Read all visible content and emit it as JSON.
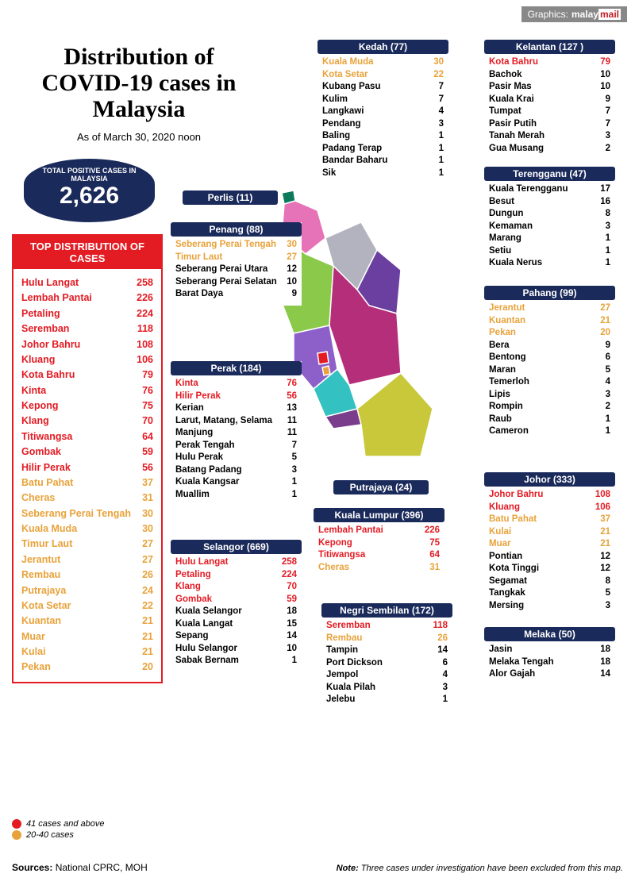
{
  "header": {
    "credit": "Graphics:",
    "logo_plain": "malay",
    "logo_red": "mail"
  },
  "title": "Distribution of COVID-19 cases in Malaysia",
  "subtitle": "As of March 30, 2020 noon",
  "total": {
    "label": "TOTAL POSITIVE CASES IN MALAYSIA",
    "value": "2,626"
  },
  "top_distribution": {
    "header": "TOP DISTRIBUTION OF CASES",
    "rows": [
      {
        "name": "Hulu Langat",
        "v": "258",
        "c": "red"
      },
      {
        "name": "Lembah Pantai",
        "v": "226",
        "c": "red"
      },
      {
        "name": "Petaling",
        "v": "224",
        "c": "red"
      },
      {
        "name": "Seremban",
        "v": "118",
        "c": "red"
      },
      {
        "name": "Johor Bahru",
        "v": "108",
        "c": "red"
      },
      {
        "name": "Kluang",
        "v": "106",
        "c": "red"
      },
      {
        "name": "Kota Bahru",
        "v": "79",
        "c": "red"
      },
      {
        "name": "Kinta",
        "v": "76",
        "c": "red"
      },
      {
        "name": "Kepong",
        "v": "75",
        "c": "red"
      },
      {
        "name": "Klang",
        "v": "70",
        "c": "red"
      },
      {
        "name": "Titiwangsa",
        "v": "64",
        "c": "red"
      },
      {
        "name": "Gombak",
        "v": "59",
        "c": "red"
      },
      {
        "name": "Hilir Perak",
        "v": "56",
        "c": "red"
      },
      {
        "name": "Batu Pahat",
        "v": "37",
        "c": "orange"
      },
      {
        "name": "Cheras",
        "v": "31",
        "c": "orange"
      },
      {
        "name": "Seberang Perai Tengah",
        "v": "30",
        "c": "orange"
      },
      {
        "name": "Kuala Muda",
        "v": "30",
        "c": "orange"
      },
      {
        "name": "Timur Laut",
        "v": "27",
        "c": "orange"
      },
      {
        "name": "Jerantut",
        "v": "27",
        "c": "orange"
      },
      {
        "name": "Rembau",
        "v": "26",
        "c": "orange"
      },
      {
        "name": "Putrajaya",
        "v": "24",
        "c": "orange"
      },
      {
        "name": "Kota Setar",
        "v": "22",
        "c": "orange"
      },
      {
        "name": "Kuantan",
        "v": "21",
        "c": "orange"
      },
      {
        "name": "Muar",
        "v": "21",
        "c": "orange"
      },
      {
        "name": "Kulai",
        "v": "21",
        "c": "orange"
      },
      {
        "name": "Pekan",
        "v": "20",
        "c": "orange"
      }
    ]
  },
  "legend": {
    "high": {
      "color": "#e31b23",
      "text": "41 cases and above"
    },
    "mid": {
      "color": "#e8a23a",
      "text": "20-40 cases"
    }
  },
  "sources": {
    "label": "Sources:",
    "text": "National CPRC, MOH"
  },
  "note": {
    "label": "Note:",
    "text": "Three cases under investigation have been excluded from this map."
  },
  "states": {
    "perlis": {
      "hdr": "Perlis (11)",
      "rows": []
    },
    "putrajaya": {
      "hdr": "Putrajaya (24)",
      "rows": []
    },
    "kedah": {
      "hdr": "Kedah (77)",
      "rows": [
        {
          "name": "Kuala Muda",
          "v": "30",
          "c": "orange"
        },
        {
          "name": "Kota Setar",
          "v": "22",
          "c": "orange"
        },
        {
          "name": "Kubang Pasu",
          "v": "7",
          "c": "black"
        },
        {
          "name": "Kulim",
          "v": "7",
          "c": "black"
        },
        {
          "name": "Langkawi",
          "v": "4",
          "c": "black"
        },
        {
          "name": "Pendang",
          "v": "3",
          "c": "black"
        },
        {
          "name": "Baling",
          "v": "1",
          "c": "black"
        },
        {
          "name": "Padang Terap",
          "v": "1",
          "c": "black"
        },
        {
          "name": "Bandar Baharu",
          "v": "1",
          "c": "black"
        },
        {
          "name": "Sik",
          "v": "1",
          "c": "black"
        }
      ]
    },
    "kelantan": {
      "hdr": "Kelantan (127 )",
      "rows": [
        {
          "name": "Kota Bahru",
          "v": "79",
          "c": "red"
        },
        {
          "name": "Bachok",
          "v": "10",
          "c": "black"
        },
        {
          "name": "Pasir Mas",
          "v": "10",
          "c": "black"
        },
        {
          "name": "Kuala Krai",
          "v": "9",
          "c": "black"
        },
        {
          "name": "Tumpat",
          "v": "7",
          "c": "black"
        },
        {
          "name": "Pasir Putih",
          "v": "7",
          "c": "black"
        },
        {
          "name": "Tanah Merah",
          "v": "3",
          "c": "black"
        },
        {
          "name": "Gua Musang",
          "v": "2",
          "c": "black"
        }
      ]
    },
    "terengganu": {
      "hdr": "Terengganu (47)",
      "rows": [
        {
          "name": "Kuala Terengganu",
          "v": "17",
          "c": "black"
        },
        {
          "name": "Besut",
          "v": "16",
          "c": "black"
        },
        {
          "name": "Dungun",
          "v": "8",
          "c": "black"
        },
        {
          "name": "Kemaman",
          "v": "3",
          "c": "black"
        },
        {
          "name": "Marang",
          "v": "1",
          "c": "black"
        },
        {
          "name": "Setiu",
          "v": "1",
          "c": "black"
        },
        {
          "name": "Kuala Nerus",
          "v": "1",
          "c": "black"
        }
      ]
    },
    "penang": {
      "hdr": "Penang (88)",
      "rows": [
        {
          "name": "Seberang Perai Tengah",
          "v": "30",
          "c": "orange"
        },
        {
          "name": "Timur Laut",
          "v": "27",
          "c": "orange"
        },
        {
          "name": "Seberang Perai Utara",
          "v": "12",
          "c": "black"
        },
        {
          "name": "Seberang Perai Selatan",
          "v": "10",
          "c": "black"
        },
        {
          "name": "Barat Daya",
          "v": "9",
          "c": "black"
        }
      ]
    },
    "perak": {
      "hdr": "Perak (184)",
      "rows": [
        {
          "name": "Kinta",
          "v": "76",
          "c": "red"
        },
        {
          "name": "Hilir Perak",
          "v": "56",
          "c": "red"
        },
        {
          "name": "Kerian",
          "v": "13",
          "c": "black"
        },
        {
          "name": "Larut, Matang, Selama",
          "v": "11",
          "c": "black"
        },
        {
          "name": "Manjung",
          "v": "11",
          "c": "black"
        },
        {
          "name": "Perak Tengah",
          "v": "7",
          "c": "black"
        },
        {
          "name": "Hulu Perak",
          "v": "5",
          "c": "black"
        },
        {
          "name": "Batang Padang",
          "v": "3",
          "c": "black"
        },
        {
          "name": "Kuala Kangsar",
          "v": "1",
          "c": "black"
        },
        {
          "name": "Muallim",
          "v": "1",
          "c": "black"
        }
      ]
    },
    "selangor": {
      "hdr": "Selangor (669)",
      "rows": [
        {
          "name": "Hulu Langat",
          "v": "258",
          "c": "red"
        },
        {
          "name": "Petaling",
          "v": "224",
          "c": "red"
        },
        {
          "name": "Klang",
          "v": "70",
          "c": "red"
        },
        {
          "name": "Gombak",
          "v": "59",
          "c": "red"
        },
        {
          "name": "Kuala Selangor",
          "v": "18",
          "c": "black"
        },
        {
          "name": "Kuala Langat",
          "v": "15",
          "c": "black"
        },
        {
          "name": "Sepang",
          "v": "14",
          "c": "black"
        },
        {
          "name": "Hulu Selangor",
          "v": "10",
          "c": "black"
        },
        {
          "name": "Sabak Bernam",
          "v": "1",
          "c": "black"
        }
      ]
    },
    "pahang": {
      "hdr": "Pahang (99)",
      "rows": [
        {
          "name": "Jerantut",
          "v": "27",
          "c": "orange"
        },
        {
          "name": "Kuantan",
          "v": "21",
          "c": "orange"
        },
        {
          "name": "Pekan",
          "v": "20",
          "c": "orange"
        },
        {
          "name": "Bera",
          "v": "9",
          "c": "black"
        },
        {
          "name": "Bentong",
          "v": "6",
          "c": "black"
        },
        {
          "name": "Maran",
          "v": "5",
          "c": "black"
        },
        {
          "name": "Temerloh",
          "v": "4",
          "c": "black"
        },
        {
          "name": "Lipis",
          "v": "3",
          "c": "black"
        },
        {
          "name": "Rompin",
          "v": "2",
          "c": "black"
        },
        {
          "name": "Raub",
          "v": "1",
          "c": "black"
        },
        {
          "name": "Cameron",
          "v": "1",
          "c": "black"
        }
      ]
    },
    "kl": {
      "hdr": "Kuala Lumpur (396)",
      "rows": [
        {
          "name": "Lembah Pantai",
          "v": "226",
          "c": "red"
        },
        {
          "name": "Kepong",
          "v": "75",
          "c": "red"
        },
        {
          "name": "Titiwangsa",
          "v": "64",
          "c": "red"
        },
        {
          "name": "Cheras",
          "v": "31",
          "c": "orange"
        }
      ]
    },
    "ns": {
      "hdr": "Negri Sembilan (172)",
      "rows": [
        {
          "name": "Seremban",
          "v": "118",
          "c": "red"
        },
        {
          "name": "Rembau",
          "v": "26",
          "c": "orange"
        },
        {
          "name": "Tampin",
          "v": "14",
          "c": "black"
        },
        {
          "name": "Port Dickson",
          "v": "6",
          "c": "black"
        },
        {
          "name": "Jempol",
          "v": "4",
          "c": "black"
        },
        {
          "name": "Kuala Pilah",
          "v": "3",
          "c": "black"
        },
        {
          "name": "Jelebu",
          "v": "1",
          "c": "black"
        }
      ]
    },
    "johor": {
      "hdr": "Johor (333)",
      "rows": [
        {
          "name": "Johor Bahru",
          "v": "108",
          "c": "red"
        },
        {
          "name": "Kluang",
          "v": "106",
          "c": "red"
        },
        {
          "name": "Batu Pahat",
          "v": "37",
          "c": "orange"
        },
        {
          "name": "Kulai",
          "v": "21",
          "c": "orange"
        },
        {
          "name": "Muar",
          "v": "21",
          "c": "orange"
        },
        {
          "name": "Pontian",
          "v": "12",
          "c": "black"
        },
        {
          "name": "Kota Tinggi",
          "v": "12",
          "c": "black"
        },
        {
          "name": "Segamat",
          "v": "8",
          "c": "black"
        },
        {
          "name": "Tangkak",
          "v": "5",
          "c": "black"
        },
        {
          "name": "Mersing",
          "v": "3",
          "c": "black"
        }
      ]
    },
    "melaka": {
      "hdr": "Melaka (50)",
      "rows": [
        {
          "name": "Jasin",
          "v": "18",
          "c": "black"
        },
        {
          "name": "Melaka Tengah",
          "v": "18",
          "c": "black"
        },
        {
          "name": "Alor Gajah",
          "v": "14",
          "c": "black"
        }
      ]
    }
  },
  "map_colors": {
    "perlis": "#0a7a5a",
    "kedah": "#e673b8",
    "penang": "#b3b3b3",
    "perak": "#8bc94a",
    "selangor": "#8c5fc9",
    "kl": "#e31b23",
    "putrajaya": "#e8a23a",
    "ns": "#33c1c1",
    "melaka": "#7a3d8c",
    "pahang": "#b52e7a",
    "johor": "#c8c83a",
    "terengganu": "#6a3fa0",
    "kelantan": "#b3b3bf"
  }
}
